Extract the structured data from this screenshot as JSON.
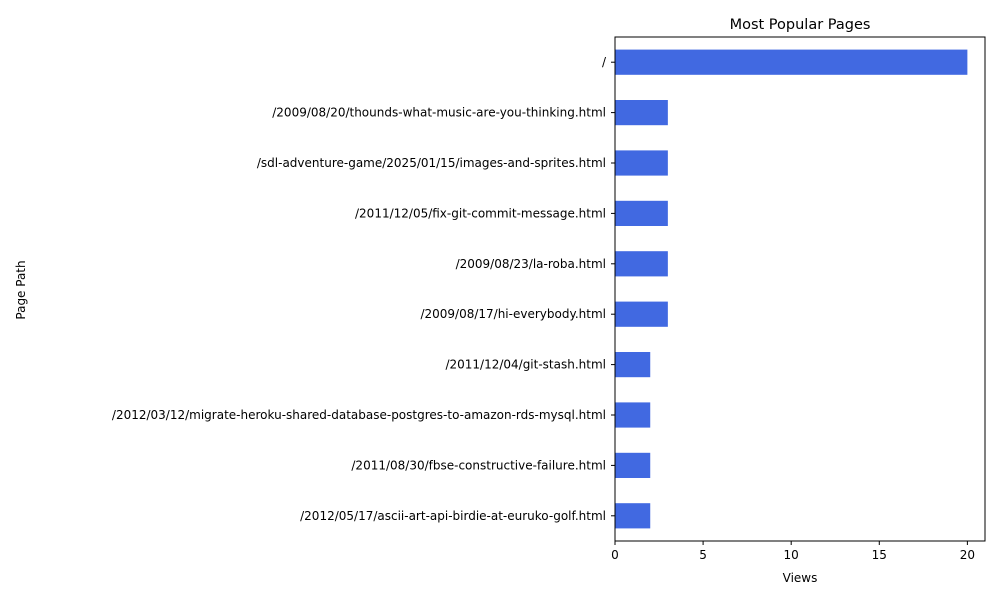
{
  "chart_data": {
    "type": "bar",
    "orientation": "horizontal",
    "title": "Most Popular Pages",
    "xlabel": "Views",
    "ylabel": "Page Path",
    "xlim": [
      0,
      21
    ],
    "xticks": [
      0,
      5,
      10,
      15,
      20
    ],
    "grid": false,
    "legend": "none",
    "bar_color": "#4169E1",
    "categories": [
      "/",
      "/2009/08/20/thounds-what-music-are-you-thinking.html",
      "/sdl-adventure-game/2025/01/15/images-and-sprites.html",
      "/2011/12/05/fix-git-commit-message.html",
      "/2009/08/23/la-roba.html",
      "/2009/08/17/hi-everybody.html",
      "/2011/12/04/git-stash.html",
      "/2012/03/12/migrate-heroku-shared-database-postgres-to-amazon-rds-mysql.html",
      "/2011/08/30/fbse-constructive-failure.html",
      "/2012/05/17/ascii-art-api-birdie-at-euruko-golf.html"
    ],
    "values": [
      20,
      3,
      3,
      3,
      3,
      3,
      2,
      2,
      2,
      2
    ]
  }
}
